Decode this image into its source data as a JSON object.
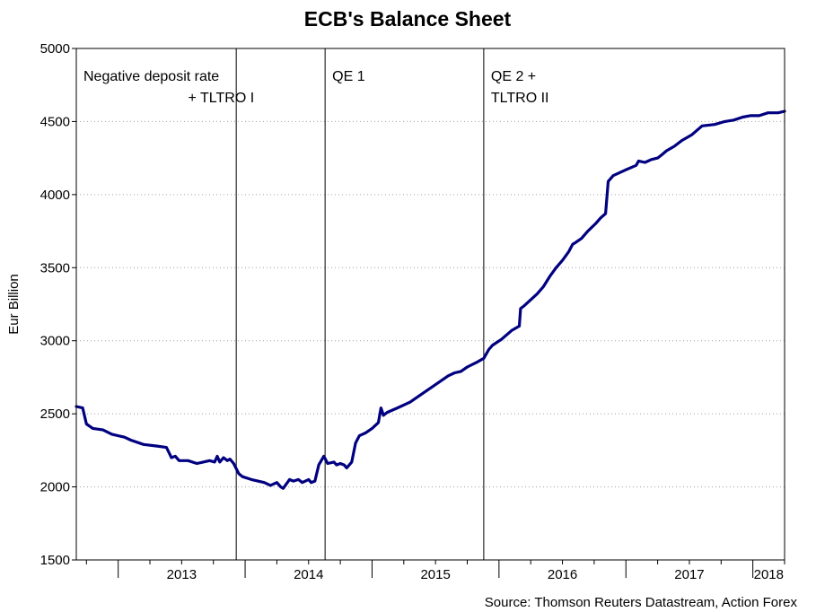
{
  "chart_data": {
    "type": "line",
    "title": "ECB's Balance Sheet",
    "xlabel": "",
    "ylabel": "Eur Billion",
    "source": "Source: Thomson Reuters Datastream, Action Forex",
    "ylim": [
      1500,
      5000
    ],
    "yticks": [
      1500,
      2000,
      2500,
      3000,
      3500,
      4000,
      4500,
      5000
    ],
    "xlim": [
      2012.67,
      2018.25
    ],
    "xtick_labels": [
      "2013",
      "2014",
      "2015",
      "2016",
      "2017",
      "2018"
    ],
    "grid": "horizontal-dotted",
    "colors": {
      "series": "#000080",
      "event_line": "#000000",
      "grid": "#a0a0a0"
    },
    "events": [
      {
        "x": 2013.93,
        "lines": [
          "Negative deposit rate",
          "+ TLTRO I"
        ],
        "label_side": "left"
      },
      {
        "x": 2014.63,
        "lines": [
          "QE 1"
        ],
        "label_side": "right"
      },
      {
        "x": 2015.88,
        "lines": [
          "QE 2 +",
          "TLTRO II"
        ],
        "label_side": "right"
      }
    ],
    "series": [
      {
        "x": [
          2012.67,
          2012.72,
          2012.75,
          2012.8,
          2012.88,
          2012.95,
          2013.05,
          2013.1,
          2013.2,
          2013.3,
          2013.38,
          2013.42,
          2013.45,
          2013.48,
          2013.55,
          2013.62,
          2013.67,
          2013.72,
          2013.76,
          2013.78,
          2013.8,
          2013.83,
          2013.86,
          2013.88,
          2013.91,
          2013.95,
          2013.98,
          2014.05,
          2014.1,
          2014.15,
          2014.2,
          2014.25,
          2014.28,
          2014.3,
          2014.35,
          2014.38,
          2014.42,
          2014.45,
          2014.5,
          2014.52,
          2014.55,
          2014.58,
          2014.6,
          2014.62,
          2014.65,
          2014.7,
          2014.72,
          2014.75,
          2014.78,
          2014.8,
          2014.84,
          2014.87,
          2014.9,
          2014.95,
          2015.0,
          2015.05,
          2015.07,
          2015.09,
          2015.12,
          2015.2,
          2015.3,
          2015.4,
          2015.5,
          2015.6,
          2015.65,
          2015.7,
          2015.75,
          2015.82,
          2015.88,
          2015.92,
          2015.95,
          2016.02,
          2016.1,
          2016.16,
          2016.17,
          2016.2,
          2016.25,
          2016.3,
          2016.35,
          2016.4,
          2016.45,
          2016.5,
          2016.55,
          2016.58,
          2016.6,
          2016.65,
          2016.7,
          2016.76,
          2016.8,
          2016.84,
          2016.86,
          2016.9,
          2017.0,
          2017.08,
          2017.1,
          2017.15,
          2017.2,
          2017.25,
          2017.28,
          2017.32,
          2017.38,
          2017.44,
          2017.52,
          2017.6,
          2017.7,
          2017.78,
          2017.85,
          2017.92,
          2017.98,
          2018.05,
          2018.12,
          2018.17,
          2018.2,
          2018.25
        ],
        "values": [
          2550,
          2540,
          2430,
          2400,
          2390,
          2360,
          2340,
          2320,
          2290,
          2280,
          2270,
          2200,
          2210,
          2180,
          2180,
          2160,
          2170,
          2180,
          2170,
          2210,
          2170,
          2200,
          2180,
          2190,
          2160,
          2090,
          2070,
          2050,
          2040,
          2030,
          2010,
          2030,
          2000,
          1990,
          2050,
          2040,
          2050,
          2030,
          2050,
          2030,
          2040,
          2150,
          2180,
          2210,
          2160,
          2170,
          2150,
          2160,
          2150,
          2130,
          2170,
          2300,
          2350,
          2370,
          2400,
          2440,
          2540,
          2490,
          2510,
          2540,
          2580,
          2640,
          2700,
          2760,
          2780,
          2790,
          2820,
          2850,
          2880,
          2940,
          2970,
          3010,
          3070,
          3100,
          3220,
          3240,
          3280,
          3320,
          3370,
          3440,
          3500,
          3550,
          3610,
          3660,
          3670,
          3700,
          3750,
          3800,
          3840,
          3870,
          4090,
          4130,
          4170,
          4200,
          4230,
          4220,
          4240,
          4250,
          4270,
          4300,
          4330,
          4370,
          4410,
          4470,
          4480,
          4500,
          4510,
          4530,
          4540,
          4540,
          4560,
          4560,
          4560,
          4570
        ]
      }
    ]
  }
}
